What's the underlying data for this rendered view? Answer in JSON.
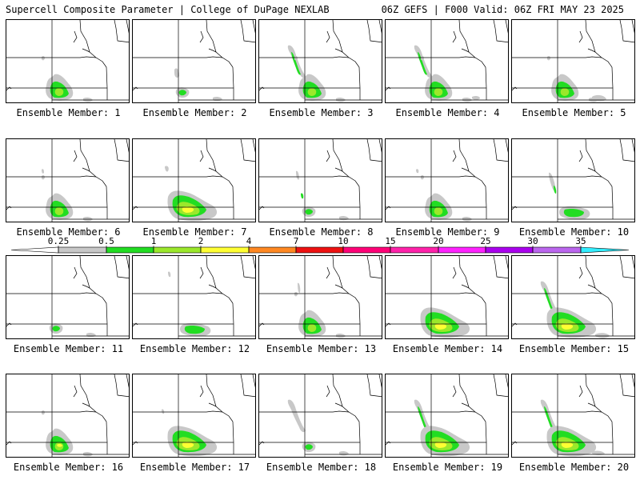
{
  "header": {
    "left": "Supercell Composite Parameter | College of DuPage NEXLAB",
    "right": "06Z GEFS | F000 Valid: 06Z FRI MAY 23 2025"
  },
  "label_prefix": "Ensemble Member: ",
  "members": [
    "1",
    "2",
    "3",
    "4",
    "5",
    "6",
    "7",
    "8",
    "9",
    "10",
    "11",
    "12",
    "13",
    "14",
    "15",
    "16",
    "17",
    "18",
    "19",
    "20"
  ],
  "colorbar": {
    "labels": [
      "0.25",
      "0.5",
      "1",
      "2",
      "4",
      "7",
      "10",
      "15",
      "20",
      "25",
      "30",
      "35"
    ],
    "colors": [
      "#c8c8c8",
      "#22dd22",
      "#9be82b",
      "#ffff33",
      "#ff8822",
      "#ee1111",
      "#ff0077",
      "#ff22aa",
      "#ff22ff",
      "#aa00ee",
      "#bb66ee",
      "#33eeff"
    ]
  },
  "fill_colors": {
    "gray": "#c8c8c8",
    "green": "#22dd22",
    "lightgreen": "#9be82b",
    "yellow": "#ffff33"
  }
}
